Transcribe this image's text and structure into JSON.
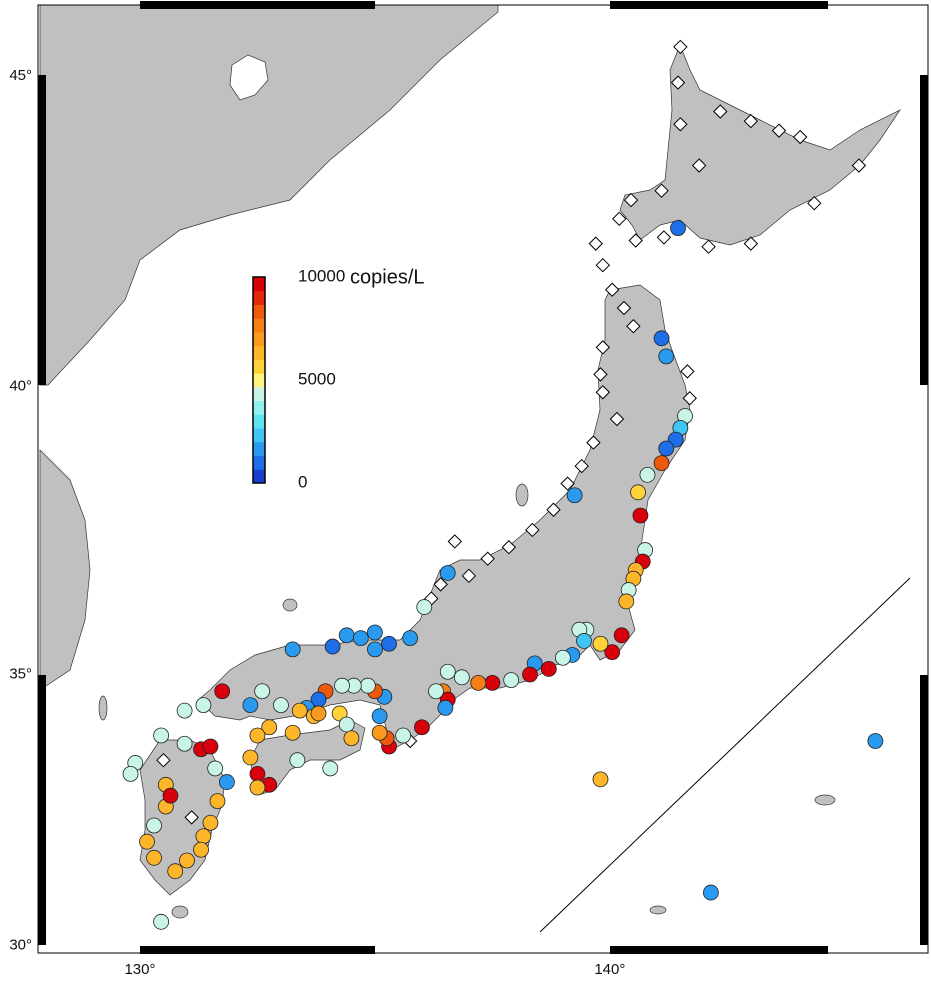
{
  "map": {
    "lon_range": [
      127.83,
      146.77
    ],
    "lat_range": [
      29.86,
      46.09
    ],
    "lat_ticks": [
      {
        "value": 45,
        "label": "45°"
      },
      {
        "value": 40,
        "label": "40°"
      },
      {
        "value": 35,
        "label": "35°"
      },
      {
        "value": 30,
        "label": "30°"
      }
    ],
    "lon_ticks": [
      {
        "value": 130,
        "label": "130°"
      },
      {
        "value": 140,
        "label": "140°"
      }
    ],
    "colorbar": {
      "label": "copies/L",
      "range": [
        0,
        10000
      ],
      "ticks": [
        0,
        5000,
        10000
      ],
      "colors": [
        "#1a3fcf",
        "#1e6ee8",
        "#2a9af0",
        "#3fc4f5",
        "#5fe3f0",
        "#8ff0ee",
        "#c8f5e8",
        "#fff380",
        "#ffd23a",
        "#fdb62a",
        "#fa9a1e",
        "#f57f14",
        "#ee5a0c",
        "#e32a08",
        "#d8000a"
      ]
    },
    "sites": [
      {
        "lon": 141.45,
        "lat": 42.6,
        "value": 1000
      },
      {
        "lon": 141.1,
        "lat": 40.8,
        "value": 1000
      },
      {
        "lon": 141.2,
        "lat": 40.5,
        "value": 1500
      },
      {
        "lon": 141.6,
        "lat": 39.5,
        "value": 4000
      },
      {
        "lon": 141.5,
        "lat": 39.3,
        "value": 2000
      },
      {
        "lon": 141.4,
        "lat": 39.1,
        "value": 1000
      },
      {
        "lon": 141.2,
        "lat": 38.95,
        "value": 1000
      },
      {
        "lon": 141.1,
        "lat": 38.7,
        "value": 8000
      },
      {
        "lon": 140.8,
        "lat": 38.5,
        "value": 4000
      },
      {
        "lon": 140.6,
        "lat": 38.2,
        "value": 5500
      },
      {
        "lon": 140.65,
        "lat": 37.8,
        "value": 10000
      },
      {
        "lon": 140.75,
        "lat": 37.2,
        "value": 4500
      },
      {
        "lon": 140.7,
        "lat": 37.0,
        "value": 9500
      },
      {
        "lon": 140.55,
        "lat": 36.85,
        "value": 6500
      },
      {
        "lon": 140.5,
        "lat": 36.7,
        "value": 6500
      },
      {
        "lon": 140.4,
        "lat": 36.5,
        "value": 4000
      },
      {
        "lon": 140.35,
        "lat": 36.3,
        "value": 6000
      },
      {
        "lon": 140.25,
        "lat": 35.7,
        "value": 9500
      },
      {
        "lon": 140.05,
        "lat": 35.4,
        "value": 9500
      },
      {
        "lon": 139.8,
        "lat": 35.55,
        "value": 5500
      },
      {
        "lon": 139.5,
        "lat": 35.8,
        "value": 4000
      },
      {
        "lon": 139.35,
        "lat": 35.8,
        "value": 4000
      },
      {
        "lon": 139.45,
        "lat": 35.6,
        "value": 2000
      },
      {
        "lon": 139.2,
        "lat": 35.35,
        "value": 1500
      },
      {
        "lon": 139.0,
        "lat": 35.3,
        "value": 4500
      },
      {
        "lon": 138.7,
        "lat": 35.1,
        "value": 9500
      },
      {
        "lon": 138.4,
        "lat": 35.2,
        "value": 1500
      },
      {
        "lon": 138.3,
        "lat": 35.0,
        "value": 9500
      },
      {
        "lon": 137.9,
        "lat": 34.9,
        "value": 4000
      },
      {
        "lon": 137.5,
        "lat": 34.85,
        "value": 9500
      },
      {
        "lon": 137.2,
        "lat": 34.85,
        "value": 7500
      },
      {
        "lon": 136.85,
        "lat": 34.95,
        "value": 4000
      },
      {
        "lon": 136.55,
        "lat": 35.05,
        "value": 4000
      },
      {
        "lon": 136.45,
        "lat": 34.7,
        "value": 7500
      },
      {
        "lon": 136.55,
        "lat": 34.55,
        "value": 9500
      },
      {
        "lon": 136.5,
        "lat": 34.4,
        "value": 1500
      },
      {
        "lon": 136.3,
        "lat": 34.7,
        "value": 4000
      },
      {
        "lon": 136.0,
        "lat": 34.05,
        "value": 9500
      },
      {
        "lon": 135.6,
        "lat": 33.9,
        "value": 4000
      },
      {
        "lon": 135.3,
        "lat": 33.7,
        "value": 9500
      },
      {
        "lon": 135.25,
        "lat": 33.85,
        "value": 8000
      },
      {
        "lon": 135.1,
        "lat": 33.95,
        "value": 7000
      },
      {
        "lon": 135.1,
        "lat": 34.25,
        "value": 1500
      },
      {
        "lon": 135.2,
        "lat": 34.6,
        "value": 1500
      },
      {
        "lon": 135.0,
        "lat": 34.7,
        "value": 8000
      },
      {
        "lon": 134.85,
        "lat": 34.8,
        "value": 4000
      },
      {
        "lon": 134.55,
        "lat": 34.8,
        "value": 4000
      },
      {
        "lon": 134.3,
        "lat": 34.8,
        "value": 4000
      },
      {
        "lon": 133.95,
        "lat": 34.7,
        "value": 8000
      },
      {
        "lon": 133.8,
        "lat": 34.55,
        "value": 1000
      },
      {
        "lon": 133.55,
        "lat": 34.4,
        "value": 1500
      },
      {
        "lon": 133.4,
        "lat": 34.35,
        "value": 6500
      },
      {
        "lon": 133.7,
        "lat": 34.25,
        "value": 6500
      },
      {
        "lon": 133.8,
        "lat": 34.3,
        "value": 7000
      },
      {
        "lon": 134.25,
        "lat": 34.3,
        "value": 5500
      },
      {
        "lon": 134.4,
        "lat": 34.1,
        "value": 4000
      },
      {
        "lon": 134.5,
        "lat": 33.85,
        "value": 6500
      },
      {
        "lon": 134.05,
        "lat": 33.3,
        "value": 4000
      },
      {
        "lon": 133.35,
        "lat": 33.45,
        "value": 4000
      },
      {
        "lon": 133.25,
        "lat": 33.95,
        "value": 6500
      },
      {
        "lon": 132.75,
        "lat": 34.05,
        "value": 6500
      },
      {
        "lon": 132.5,
        "lat": 33.9,
        "value": 6500
      },
      {
        "lon": 132.35,
        "lat": 33.5,
        "value": 6500
      },
      {
        "lon": 132.5,
        "lat": 33.2,
        "value": 9500
      },
      {
        "lon": 132.75,
        "lat": 33.0,
        "value": 9500
      },
      {
        "lon": 132.5,
        "lat": 32.95,
        "value": 6500
      },
      {
        "lon": 132.35,
        "lat": 34.45,
        "value": 1500
      },
      {
        "lon": 132.6,
        "lat": 34.7,
        "value": 4000
      },
      {
        "lon": 133.25,
        "lat": 35.45,
        "value": 1500
      },
      {
        "lon": 133.0,
        "lat": 34.45,
        "value": 4000
      },
      {
        "lon": 134.1,
        "lat": 35.5,
        "value": 1000
      },
      {
        "lon": 134.4,
        "lat": 35.7,
        "value": 1500
      },
      {
        "lon": 134.7,
        "lat": 35.65,
        "value": 1500
      },
      {
        "lon": 135.0,
        "lat": 35.75,
        "value": 1500
      },
      {
        "lon": 135.0,
        "lat": 35.45,
        "value": 1500
      },
      {
        "lon": 135.3,
        "lat": 35.55,
        "value": 1000
      },
      {
        "lon": 135.75,
        "lat": 35.65,
        "value": 1500
      },
      {
        "lon": 136.05,
        "lat": 36.2,
        "value": 4000
      },
      {
        "lon": 136.55,
        "lat": 36.8,
        "value": 1500
      },
      {
        "lon": 139.25,
        "lat": 38.15,
        "value": 1500
      },
      {
        "lon": 131.75,
        "lat": 34.7,
        "value": 9500
      },
      {
        "lon": 131.35,
        "lat": 34.45,
        "value": 4000
      },
      {
        "lon": 130.95,
        "lat": 34.35,
        "value": 4000
      },
      {
        "lon": 130.45,
        "lat": 33.9,
        "value": 4000
      },
      {
        "lon": 130.95,
        "lat": 33.75,
        "value": 4000
      },
      {
        "lon": 131.3,
        "lat": 33.65,
        "value": 9500
      },
      {
        "lon": 131.5,
        "lat": 33.7,
        "value": 9500
      },
      {
        "lon": 131.6,
        "lat": 33.3,
        "value": 4000
      },
      {
        "lon": 131.85,
        "lat": 33.05,
        "value": 1500
      },
      {
        "lon": 131.65,
        "lat": 32.7,
        "value": 6500
      },
      {
        "lon": 131.5,
        "lat": 32.3,
        "value": 6500
      },
      {
        "lon": 131.35,
        "lat": 32.05,
        "value": 6500
      },
      {
        "lon": 131.3,
        "lat": 31.8,
        "value": 6500
      },
      {
        "lon": 131.0,
        "lat": 31.6,
        "value": 6500
      },
      {
        "lon": 130.75,
        "lat": 31.4,
        "value": 6500
      },
      {
        "lon": 130.3,
        "lat": 31.65,
        "value": 6500
      },
      {
        "lon": 130.15,
        "lat": 31.95,
        "value": 6500
      },
      {
        "lon": 130.3,
        "lat": 32.25,
        "value": 4000
      },
      {
        "lon": 130.55,
        "lat": 32.6,
        "value": 6500
      },
      {
        "lon": 130.55,
        "lat": 33.0,
        "value": 6500
      },
      {
        "lon": 130.65,
        "lat": 32.8,
        "value": 9500
      },
      {
        "lon": 129.9,
        "lat": 33.4,
        "value": 4000
      },
      {
        "lon": 129.8,
        "lat": 33.2,
        "value": 4000
      },
      {
        "lon": 130.45,
        "lat": 30.45,
        "value": 4000
      },
      {
        "lon": 139.8,
        "lat": 33.1,
        "value": 6500
      },
      {
        "lon": 142.15,
        "lat": 31.0,
        "value": 1500
      },
      {
        "lon": 145.65,
        "lat": 33.8,
        "value": 1500
      }
    ],
    "no_detection_sites": [
      {
        "lon": 141.5,
        "lat": 45.45
      },
      {
        "lon": 141.45,
        "lat": 44.9
      },
      {
        "lon": 141.5,
        "lat": 44.25
      },
      {
        "lon": 142.35,
        "lat": 44.45
      },
      {
        "lon": 143.0,
        "lat": 44.3
      },
      {
        "lon": 143.6,
        "lat": 44.15
      },
      {
        "lon": 144.05,
        "lat": 44.05
      },
      {
        "lon": 141.9,
        "lat": 43.6
      },
      {
        "lon": 141.1,
        "lat": 43.2
      },
      {
        "lon": 140.45,
        "lat": 43.05
      },
      {
        "lon": 140.2,
        "lat": 42.75
      },
      {
        "lon": 140.55,
        "lat": 42.4
      },
      {
        "lon": 141.15,
        "lat": 42.45
      },
      {
        "lon": 142.1,
        "lat": 42.3
      },
      {
        "lon": 143.0,
        "lat": 42.35
      },
      {
        "lon": 144.35,
        "lat": 43.0
      },
      {
        "lon": 145.3,
        "lat": 43.6
      },
      {
        "lon": 139.7,
        "lat": 42.35
      },
      {
        "lon": 139.85,
        "lat": 42.0
      },
      {
        "lon": 140.05,
        "lat": 41.6
      },
      {
        "lon": 140.3,
        "lat": 41.3
      },
      {
        "lon": 140.5,
        "lat": 41.0
      },
      {
        "lon": 139.85,
        "lat": 40.65
      },
      {
        "lon": 139.8,
        "lat": 40.2
      },
      {
        "lon": 139.85,
        "lat": 39.9
      },
      {
        "lon": 140.15,
        "lat": 39.45
      },
      {
        "lon": 139.65,
        "lat": 39.05
      },
      {
        "lon": 139.4,
        "lat": 38.65
      },
      {
        "lon": 139.1,
        "lat": 38.35
      },
      {
        "lon": 138.8,
        "lat": 37.9
      },
      {
        "lon": 138.35,
        "lat": 37.55
      },
      {
        "lon": 137.85,
        "lat": 37.25
      },
      {
        "lon": 137.4,
        "lat": 37.05
      },
      {
        "lon": 137.0,
        "lat": 36.75
      },
      {
        "lon": 136.7,
        "lat": 37.35
      },
      {
        "lon": 136.4,
        "lat": 36.6
      },
      {
        "lon": 136.2,
        "lat": 36.35
      },
      {
        "lon": 141.65,
        "lat": 40.25
      },
      {
        "lon": 141.7,
        "lat": 39.8
      },
      {
        "lon": 135.75,
        "lat": 33.8
      },
      {
        "lon": 130.5,
        "lat": 33.45
      },
      {
        "lon": 131.1,
        "lat": 32.4
      }
    ]
  }
}
